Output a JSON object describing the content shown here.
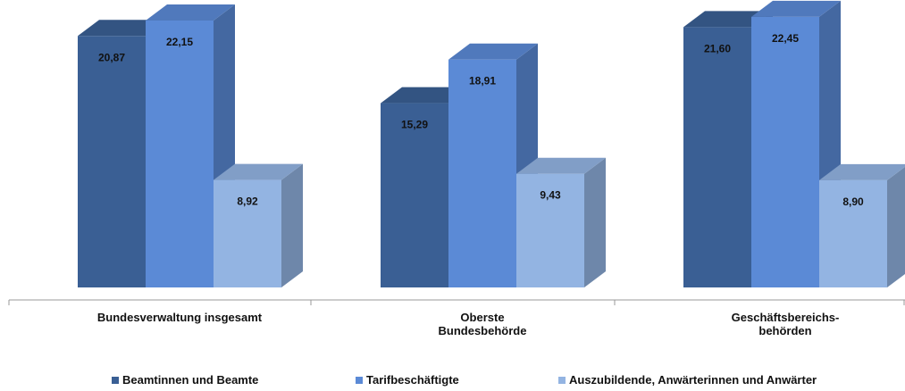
{
  "chart_data": {
    "type": "bar",
    "style": "3d-clustered-column",
    "categories": [
      [
        "Bundesverwaltung insgesamt"
      ],
      [
        "Oberste",
        "Bundesbehörde"
      ],
      [
        "Geschäftsbereichs-",
        "behörden"
      ]
    ],
    "series": [
      {
        "name": "Beamtinnen und Beamte",
        "values": [
          20.87,
          15.29,
          21.6
        ],
        "labels": [
          "20,87",
          "15,29",
          "21,60"
        ],
        "color": "#3a5f94"
      },
      {
        "name": "Tarifbeschäftigte",
        "values": [
          22.15,
          18.91,
          22.45
        ],
        "labels": [
          "22,15",
          "18,91",
          "22,45"
        ],
        "color": "#5b8ad6"
      },
      {
        "name": "Auszubildende, Anwärterinnen und Anwärter",
        "values": [
          8.92,
          9.43,
          8.9
        ],
        "labels": [
          "8,92",
          "9,43",
          "8,90"
        ],
        "color": "#93b4e2"
      }
    ],
    "ylim": [
      0,
      23
    ],
    "grid": false,
    "legend_position": "bottom"
  }
}
